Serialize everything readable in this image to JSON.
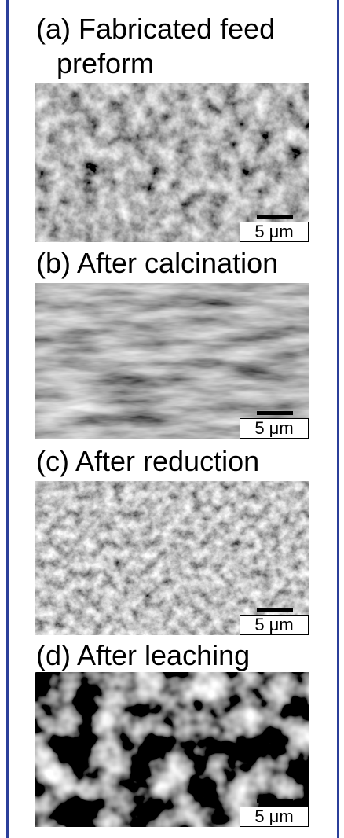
{
  "figure": {
    "panels": [
      {
        "caption_lines": [
          "(a) Fabricated feed",
          "preform"
        ],
        "scale_bar": "5 μm"
      },
      {
        "caption_lines": [
          "(b) After calcination"
        ],
        "scale_bar": "5 μm"
      },
      {
        "caption_lines": [
          "(c) After reduction"
        ],
        "scale_bar": "5 μm"
      },
      {
        "caption_lines": [
          "(d) After leaching"
        ],
        "scale_bar": "5 μm"
      }
    ]
  }
}
